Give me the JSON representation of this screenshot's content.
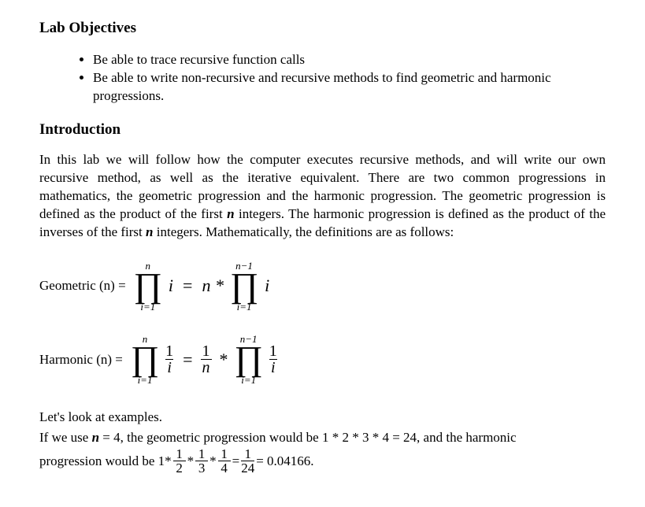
{
  "document": {
    "heading_objectives": "Lab Objectives",
    "bullets": [
      "Be able to trace recursive function calls",
      "Be able to write non-recursive and recursive methods to find geometric and harmonic progressions."
    ],
    "heading_intro": "Introduction",
    "intro_paragraph_parts": {
      "p1": "In this lab we will follow how the computer executes recursive methods, and will write our own recursive method, as well as the iterative equivalent. There are two common progressions in mathematics, the geometric progression and the harmonic progression. The geometric progression is defined as the product of the first ",
      "n1": "n",
      "p2": " integers. The harmonic progression is defined as the product of the inverses of the first ",
      "n2": "n",
      "p3": " integers. Mathematically, the definitions are as follows:"
    },
    "geometric": {
      "label": "Geometric (n) =",
      "prod1": {
        "top": "n",
        "bottom": "i=1"
      },
      "term1": "i",
      "eq": "=",
      "n_star": "n *",
      "prod2": {
        "top": "n−1",
        "bottom": "i=1"
      },
      "term2": "i"
    },
    "harmonic": {
      "label": "Harmonic (n) =",
      "prod1": {
        "top": "n",
        "bottom": "i=1"
      },
      "frac1": {
        "num": "1",
        "den": "i"
      },
      "eq": "=",
      "frac_mid": {
        "num": "1",
        "den": "n"
      },
      "star": "*",
      "prod2": {
        "top": "n−1",
        "bottom": "i=1"
      },
      "frac2": {
        "num": "1",
        "den": "i"
      }
    },
    "examples": {
      "line1": "Let's look at examples.",
      "line2_parts": {
        "p1": "If we use ",
        "n": "n",
        "p2": " = 4, the geometric progression would be 1 * 2 * 3 * 4 = 24, and the harmonic"
      },
      "line3": {
        "prefix": "progression would be 1*",
        "f1": {
          "num": "1",
          "den": "2"
        },
        "star1": "*",
        "f2": {
          "num": "1",
          "den": "3"
        },
        "star2": "*",
        "f3": {
          "num": "1",
          "den": "4"
        },
        "eq": "=",
        "f4": {
          "num": "1",
          "den": "24"
        },
        "suffix": "= 0.04166."
      }
    }
  },
  "style": {
    "font_family": "Times New Roman",
    "text_color": "#000000",
    "background_color": "#ffffff",
    "body_fontsize": 17,
    "heading_fontsize": 19,
    "pi_fontsize": 44,
    "fraction_fontsize": 20,
    "sub_super_fontsize": 13
  }
}
